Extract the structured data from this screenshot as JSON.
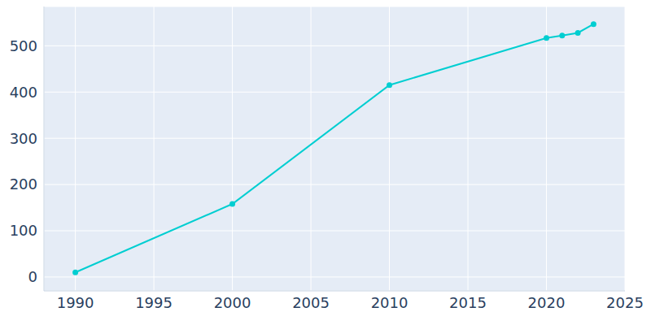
{
  "chart_data": {
    "type": "line",
    "x": [
      1990,
      2000,
      2010,
      2020,
      2021,
      2022,
      2023
    ],
    "values": [
      10,
      158,
      415,
      517,
      522,
      528,
      547
    ],
    "color": "#00ced1",
    "marker": "circle",
    "xlim": [
      1988,
      2025
    ],
    "xticks": [
      1990,
      1995,
      2000,
      2005,
      2010,
      2015,
      2020,
      2025
    ],
    "ylim": [
      -30,
      585
    ],
    "yticks": [
      0,
      100,
      200,
      300,
      400,
      500
    ],
    "grid": true
  }
}
